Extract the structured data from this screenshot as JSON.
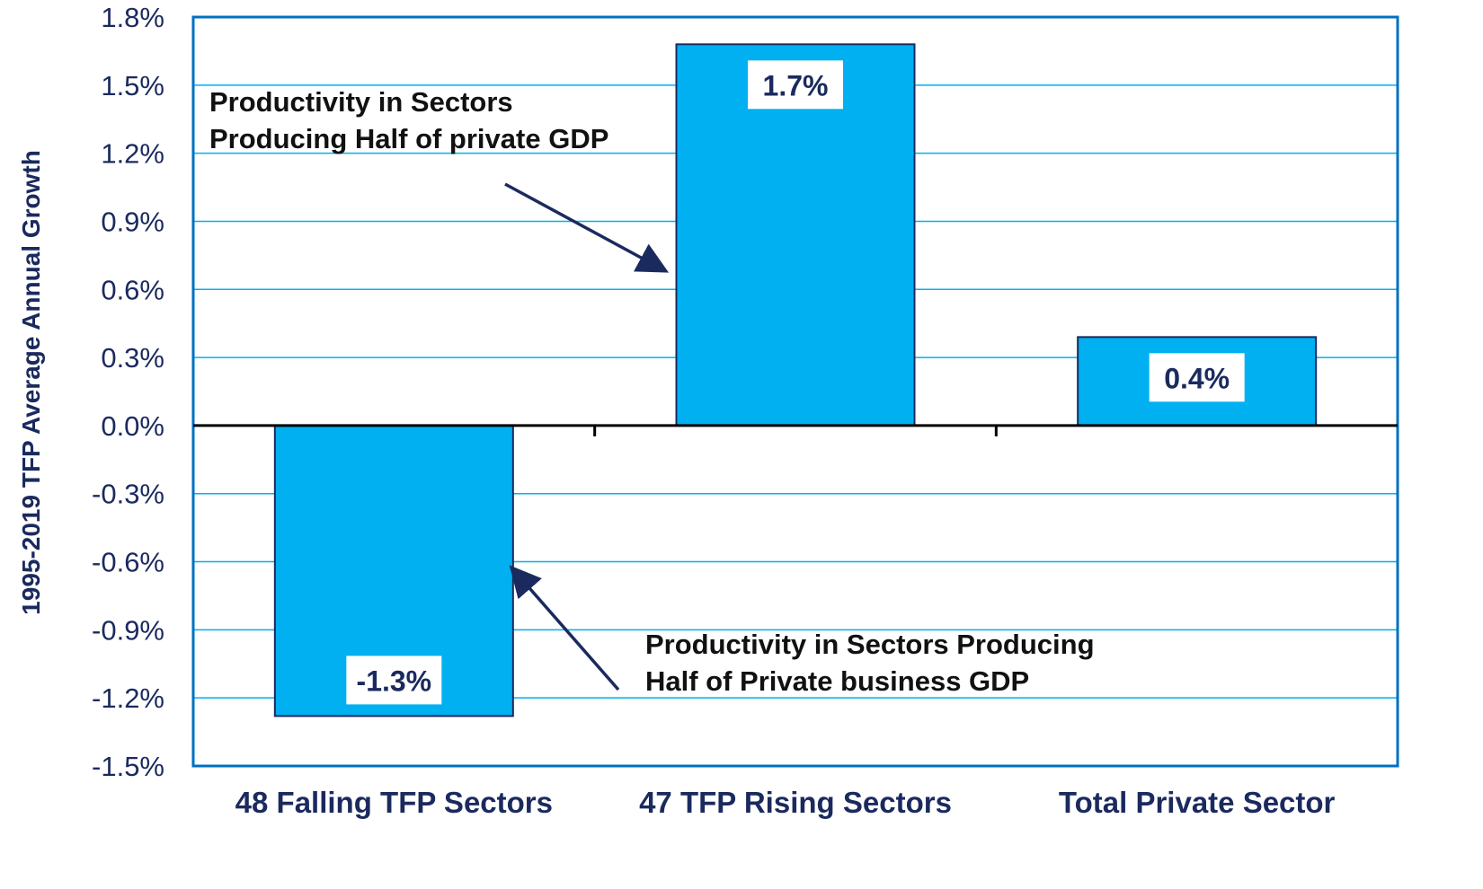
{
  "chart_data": {
    "type": "bar",
    "ylabel": "1995-2019 TFP Average Annual Growth",
    "xlabel": "",
    "categories": [
      "48 Falling TFP Sectors",
      "47 TFP Rising Sectors",
      "Total Private Sector"
    ],
    "values": [
      -1.28,
      1.68,
      0.39
    ],
    "data_labels": [
      "-1.3%",
      "1.7%",
      "0.4%"
    ],
    "ylim": [
      -1.5,
      1.8
    ],
    "yticks": [
      1.8,
      1.5,
      1.2,
      0.9,
      0.6,
      0.3,
      0.0,
      -0.3,
      -0.6,
      -0.9,
      -1.2,
      -1.5
    ],
    "ytick_labels": [
      "1.8%",
      "1.5%",
      "1.2%",
      "0.9%",
      "0.6%",
      "0.3%",
      "0.0%",
      "-0.3%",
      "-0.6%",
      "-0.9%",
      "-1.2%",
      "-1.5%"
    ],
    "grid": true,
    "legend": "none",
    "colors": {
      "bar": "#00b0f0",
      "bar_border": "#1b2a5e",
      "grid": "#00b0f0",
      "frame": "#0070c0",
      "text": "#1b2a5e",
      "arrow": "#1b2a5e"
    },
    "annotations": [
      {
        "lines": [
          "Productivity in Sectors",
          "Producing Half of private GDP"
        ],
        "points_to": "47 TFP Rising Sectors"
      },
      {
        "lines": [
          "Productivity in Sectors Producing",
          "Half of Private business GDP"
        ],
        "points_to": "48 Falling TFP Sectors"
      }
    ]
  }
}
